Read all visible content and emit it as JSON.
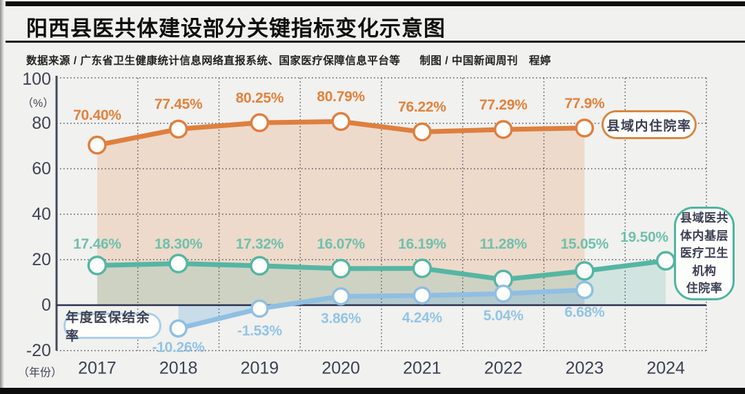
{
  "page": {
    "title": "阳西县医共体建设部分关键指标变化示意图",
    "source": "数据来源 / 广东省卫生健康统计信息网络直报系统、国家医疗保障信息平台等",
    "credit": "制图 / 中国新闻周刊　程婷"
  },
  "chart_data": {
    "type": "line",
    "title": "阳西县医共体建设部分关键指标变化示意图",
    "x": [
      "2017",
      "2018",
      "2019",
      "2020",
      "2021",
      "2022",
      "2023",
      "2024"
    ],
    "x_axis_label": "（年份）",
    "unit_label": "（%）",
    "ylim": [
      -20,
      100
    ],
    "y_ticks": [
      100,
      80,
      60,
      40,
      20,
      0,
      -20
    ],
    "grid": "dotted",
    "legend_position": "on-chart",
    "series": [
      {
        "name": "县域内住院率",
        "color": "#df7f3e",
        "label_color": "#e2823d",
        "fill": "rgba(224,130,62,0.20)",
        "values": [
          70.4,
          77.45,
          80.25,
          80.79,
          76.22,
          77.29,
          77.9,
          null
        ],
        "labels": [
          "70.40%",
          "77.45%",
          "80.25%",
          "80.79%",
          "76.22%",
          "77.29%",
          "77.9%",
          null
        ]
      },
      {
        "name": "县域医共体内基层医疗卫生机构住院率",
        "name_lines": [
          "县域医共",
          "体内基层",
          "医疗卫生",
          "机构",
          "住院率"
        ],
        "color": "#55b6a3",
        "label_color": "#6fc0ae",
        "fill": "rgba(86,182,163,0.20)",
        "values": [
          17.46,
          18.3,
          17.32,
          16.07,
          16.19,
          11.28,
          15.05,
          19.5
        ],
        "labels": [
          "17.46%",
          "18.30%",
          "17.32%",
          "16.07%",
          "16.19%",
          "11.28%",
          "15.05%",
          "19.50%"
        ]
      },
      {
        "name": "年度医保结余率",
        "color": "#8fbfe2",
        "label_color": "#92c4e5",
        "fill": "rgba(139,189,226,0.40)",
        "values": [
          null,
          -10.26,
          -1.53,
          3.86,
          4.24,
          5.04,
          6.68,
          null
        ],
        "labels": [
          null,
          "-10.26%",
          "-1.53%",
          "3.86%",
          "4.24%",
          "5.04%",
          "6.68%",
          null
        ]
      }
    ]
  }
}
